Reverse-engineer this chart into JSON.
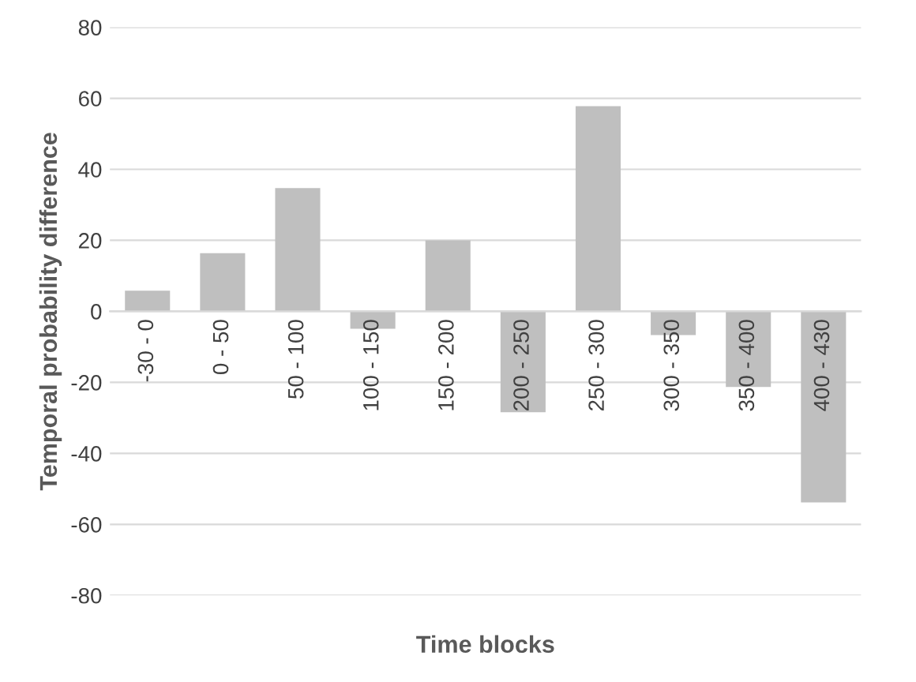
{
  "chart_data": {
    "type": "bar",
    "xlabel": "Time blocks",
    "ylabel": "Temporal probability difference",
    "categories": [
      "-30 - 0",
      "0 - 50",
      "50 - 100",
      "100 - 150",
      "150 - 200",
      "200 - 250",
      "250 - 300",
      "300 - 350",
      "350 - 400",
      "400 - 430"
    ],
    "values": [
      5.8,
      16.4,
      34.7,
      -4.9,
      20,
      -28.4,
      57.8,
      -6.7,
      -21.3,
      -53.8
    ],
    "color": "#bfbfbf",
    "ylim": [
      -80,
      80
    ],
    "yticks": [
      -80,
      -60,
      -40,
      -20,
      0,
      20,
      40,
      60,
      80
    ],
    "grid": "y",
    "legend": false
  }
}
